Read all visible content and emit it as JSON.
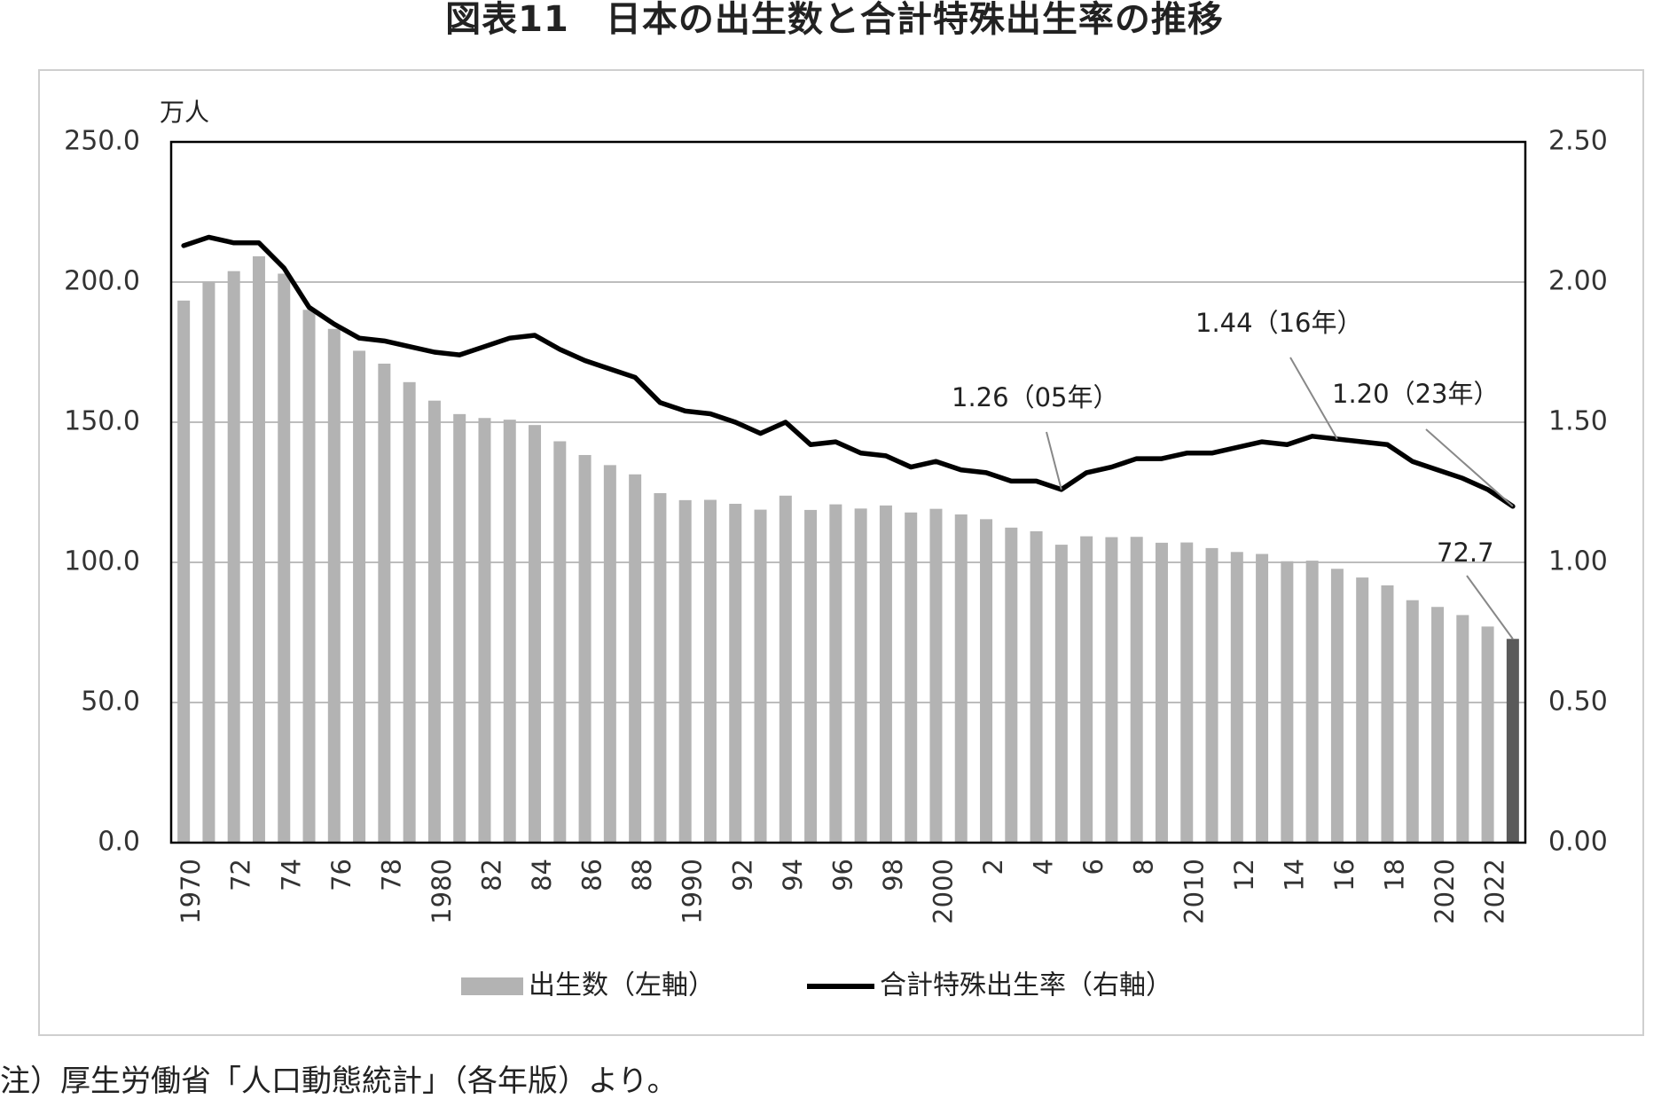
{
  "title": "図表11　日本の出生数と合計特殊出生率の推移",
  "footnote": "注）厚生労働省「人口動態統計」（各年版）より。",
  "chart_data": {
    "type": "bar",
    "left_axis_unit": "万人",
    "left_ylim": [
      0,
      250
    ],
    "left_ticks": [
      "0.0",
      "50.0",
      "100.0",
      "150.0",
      "200.0",
      "250.0"
    ],
    "right_ylim": [
      0,
      2.5
    ],
    "right_ticks": [
      "0.00",
      "0.50",
      "1.00",
      "1.50",
      "2.00",
      "2.50"
    ],
    "grid": true,
    "legend_position": "bottom",
    "x": [
      1970,
      1971,
      1972,
      1973,
      1974,
      1975,
      1976,
      1977,
      1978,
      1979,
      1980,
      1981,
      1982,
      1983,
      1984,
      1985,
      1986,
      1987,
      1988,
      1989,
      1990,
      1991,
      1992,
      1993,
      1994,
      1995,
      1996,
      1997,
      1998,
      1999,
      2000,
      2001,
      2002,
      2003,
      2004,
      2005,
      2006,
      2007,
      2008,
      2009,
      2010,
      2011,
      2012,
      2013,
      2014,
      2015,
      2016,
      2017,
      2018,
      2019,
      2020,
      2021,
      2022,
      2023
    ],
    "x_tick_labels": [
      "1970",
      "",
      "72",
      "",
      "74",
      "",
      "76",
      "",
      "78",
      "",
      "1980",
      "",
      "82",
      "",
      "84",
      "",
      "86",
      "",
      "88",
      "",
      "1990",
      "",
      "92",
      "",
      "94",
      "",
      "96",
      "",
      "98",
      "",
      "2000",
      "",
      "2",
      "",
      "4",
      "",
      "6",
      "",
      "8",
      "",
      "2010",
      "",
      "12",
      "",
      "14",
      "",
      "16",
      "",
      "18",
      "",
      "2020",
      "",
      "2022",
      ""
    ],
    "series": [
      {
        "name": "出生数（左軸）",
        "type": "bar",
        "axis": "left",
        "color": "#b3b3b3",
        "highlight_color": "#5a5a5a",
        "values": [
          193.4,
          200.1,
          203.9,
          209.2,
          203.0,
          190.1,
          183.3,
          175.5,
          170.9,
          164.3,
          157.7,
          152.9,
          151.5,
          150.9,
          149.0,
          143.2,
          138.3,
          134.7,
          131.4,
          124.7,
          122.2,
          122.3,
          120.9,
          118.8,
          123.8,
          118.7,
          120.7,
          119.2,
          120.3,
          117.8,
          119.1,
          117.1,
          115.4,
          112.4,
          111.1,
          106.3,
          109.3,
          109.0,
          109.1,
          107.0,
          107.1,
          105.1,
          103.7,
          103.0,
          100.4,
          100.6,
          97.7,
          94.6,
          91.8,
          86.5,
          84.1,
          81.2,
          77.1,
          72.7
        ]
      },
      {
        "name": "合計特殊出生率（右軸）",
        "type": "line",
        "axis": "right",
        "color": "#000000",
        "values": [
          2.13,
          2.16,
          2.14,
          2.14,
          2.05,
          1.91,
          1.85,
          1.8,
          1.79,
          1.77,
          1.75,
          1.74,
          1.77,
          1.8,
          1.81,
          1.76,
          1.72,
          1.69,
          1.66,
          1.57,
          1.54,
          1.53,
          1.5,
          1.46,
          1.5,
          1.42,
          1.43,
          1.39,
          1.38,
          1.34,
          1.36,
          1.33,
          1.32,
          1.29,
          1.29,
          1.26,
          1.32,
          1.34,
          1.37,
          1.37,
          1.39,
          1.39,
          1.41,
          1.43,
          1.42,
          1.45,
          1.44,
          1.43,
          1.42,
          1.36,
          1.33,
          1.3,
          1.26,
          1.2
        ]
      }
    ],
    "annotations": [
      {
        "text": "1.26（05年）",
        "x": 2005,
        "y": 1.26,
        "axis": "right"
      },
      {
        "text": "1.44（16年）",
        "x": 2016,
        "y": 1.44,
        "axis": "right"
      },
      {
        "text": "1.20（23年）",
        "x": 2023,
        "y": 1.2,
        "axis": "right"
      },
      {
        "text": "72.7",
        "x": 2023,
        "y": 72.7,
        "axis": "left"
      }
    ]
  }
}
